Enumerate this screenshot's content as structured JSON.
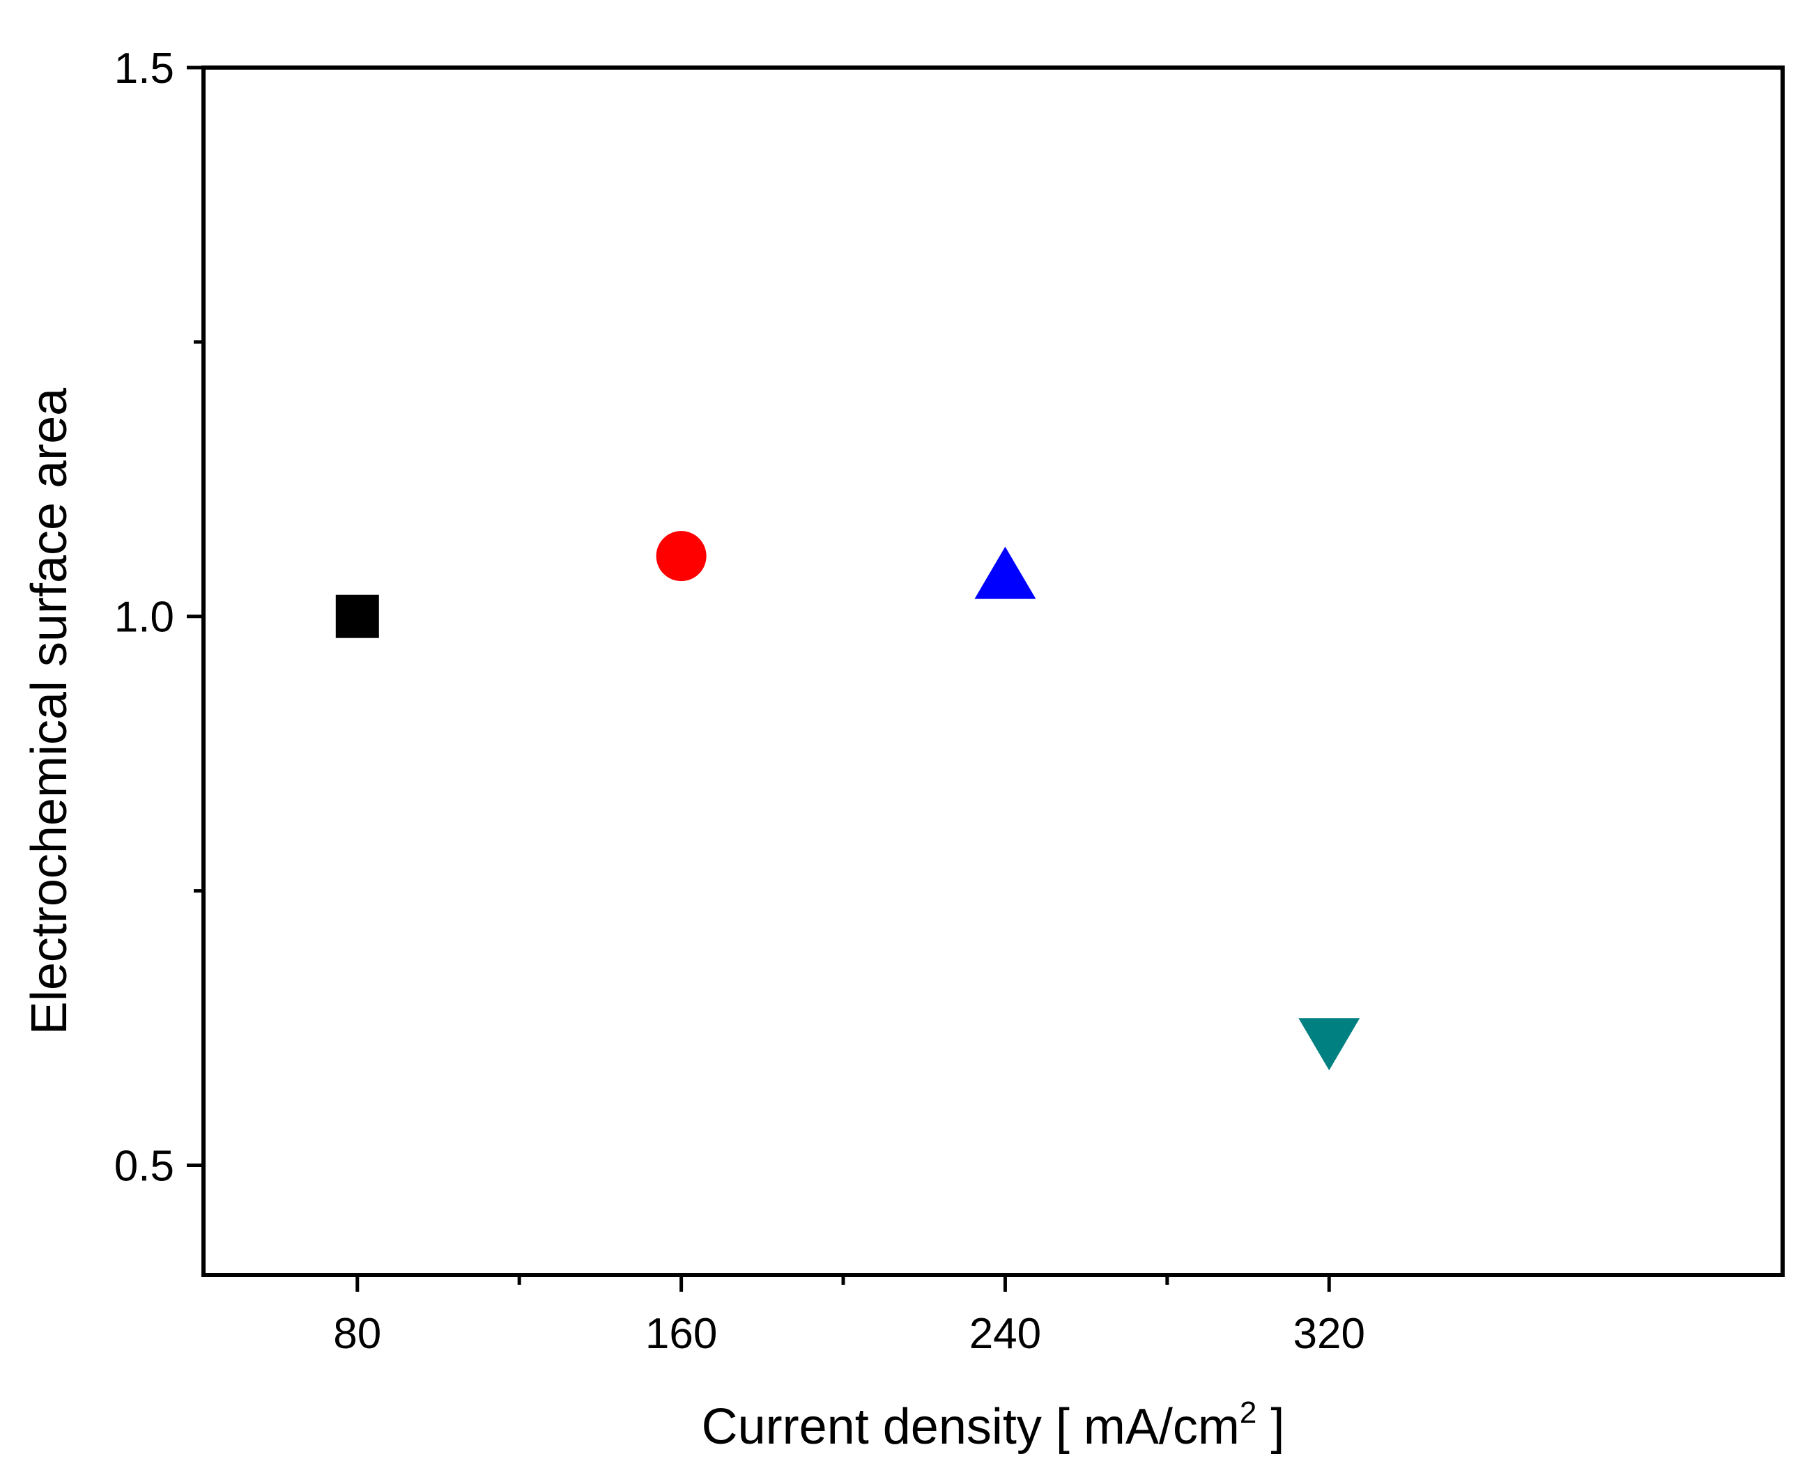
{
  "chart_data": {
    "type": "scatter",
    "title": "",
    "xlabel": "Current density [ mA/cm",
    "xlabel_superscript": "2",
    "xlabel_suffix": " ]",
    "ylabel": "Electrochemical surface area",
    "xlim": [
      42,
      432
    ],
    "ylim": [
      0.4,
      1.5
    ],
    "x_ticks": [
      80,
      160,
      240,
      320
    ],
    "x_tick_labels": [
      "80",
      "160",
      "240",
      "320"
    ],
    "x_minor_ticks": [
      120,
      200,
      280
    ],
    "y_ticks": [
      0.5,
      1.0,
      1.5
    ],
    "y_tick_labels": [
      "0.5",
      "1.0",
      "1.5"
    ],
    "y_minor_ticks": [
      0.75,
      1.25
    ],
    "grid": false,
    "legend": "none",
    "points": [
      {
        "x": 80,
        "y": 1.0,
        "marker": "square",
        "color": "#000000"
      },
      {
        "x": 160,
        "y": 1.055,
        "marker": "circle",
        "color": "#ff0000"
      },
      {
        "x": 240,
        "y": 1.035,
        "marker": "triangle-up",
        "color": "#0000ff"
      },
      {
        "x": 320,
        "y": 0.615,
        "marker": "triangle-down",
        "color": "#008080"
      }
    ]
  }
}
